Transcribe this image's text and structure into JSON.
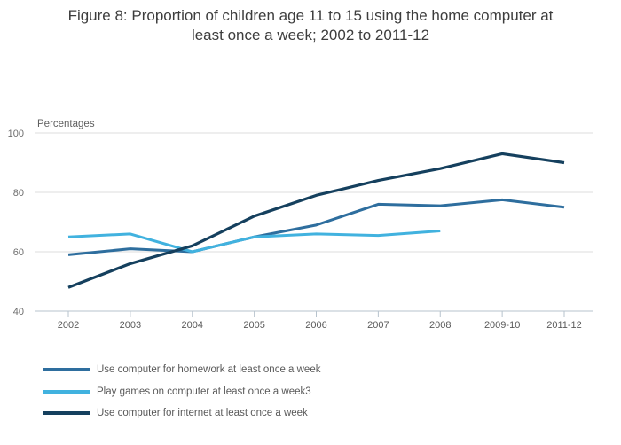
{
  "header": {
    "lines": [
      "Figure 8: Proportion of children age 11 to 15 using the home computer at",
      "least once a week; 2002 to 2011-12"
    ]
  },
  "chart_data": {
    "type": "line",
    "title": "Figure 8: Proportion of children age 11 to 15 using the home computer at least once a week; 2002 to 2011-12",
    "y_axis_label": "Percentages",
    "xlabel": "",
    "ylabel": "Percentages",
    "categories": [
      "2002",
      "2003",
      "2004",
      "2005",
      "2006",
      "2007",
      "2008",
      "2009-10",
      "2011-12"
    ],
    "y_ticks": [
      40,
      60,
      80,
      100
    ],
    "ylim": [
      40,
      100
    ],
    "grid": "horizontal",
    "legend_position": "bottom-left",
    "series": [
      {
        "name": "Use computer for homework at least once a week",
        "color": "#2e6e9e",
        "values": [
          59,
          61,
          60,
          65,
          69,
          76,
          75.5,
          77.5,
          75
        ]
      },
      {
        "name": "Play games on computer at least once a week3",
        "color": "#41b2df",
        "values": [
          65,
          66,
          60,
          65,
          66,
          65.5,
          67,
          null,
          null
        ]
      },
      {
        "name": "Use computer for internet at least once a week",
        "color": "#15405e",
        "values": [
          48,
          56,
          62,
          72,
          79,
          84,
          88,
          93,
          90
        ]
      }
    ]
  },
  "colors": {
    "gridline": "#dcdcdc",
    "axis_line": "#b7c3cd",
    "tick_mark": "#b7c3cd",
    "y_tick_label": "#6e6e6e",
    "x_tick_label": "#5a5a5a",
    "axis_title": "#5f5f5f",
    "title_text": "#3d3d3d",
    "legend_text": "#595959"
  }
}
